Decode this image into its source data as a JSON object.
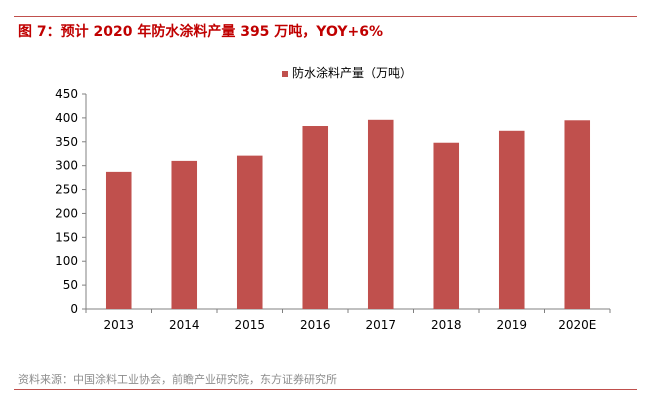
{
  "figure": {
    "title": "图 7：预计 2020 年防水涂料产量 395 万吨，YOY+6%",
    "source": "资料来源：中国涂料工业协会，前瞻产业研究院，东方证券研究所"
  },
  "chart_data": {
    "type": "bar",
    "title": "",
    "xlabel": "",
    "ylabel": "",
    "categories": [
      "2013",
      "2014",
      "2015",
      "2016",
      "2017",
      "2018",
      "2019",
      "2020E"
    ],
    "series": [
      {
        "name": "防水涂料产量（万吨）",
        "values": [
          287,
          310,
          321,
          383,
          396,
          348,
          373,
          395
        ],
        "color": "#c0504d"
      }
    ],
    "ylim": [
      0,
      450
    ],
    "yticks": [
      0,
      50,
      100,
      150,
      200,
      250,
      300,
      350,
      400,
      450
    ],
    "grid": false,
    "legend_position": "top-center"
  }
}
